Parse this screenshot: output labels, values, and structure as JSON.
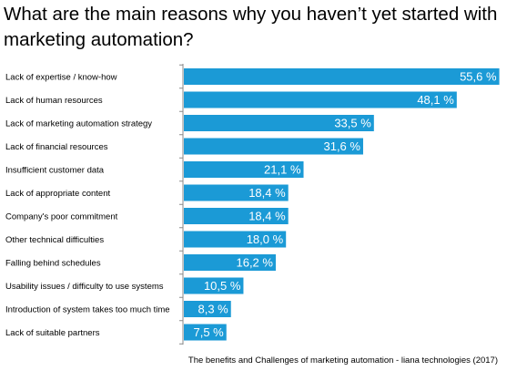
{
  "chart_data": {
    "type": "bar",
    "orientation": "horizontal",
    "title": "What are the main reasons why you haven’t yet started with marketing automation?",
    "categories": [
      "Lack of expertise / know-how",
      "Lack of human resources",
      "Lack of marketing automation strategy",
      "Lack of financial resources",
      "Insufficient customer data",
      "Lack of appropriate content",
      "Company's poor commitment",
      "Other technical difficulties",
      "Falling behind schedules",
      "Usability issues / difficulty to use systems",
      "Introduction of system takes too much time",
      "Lack of suitable partners"
    ],
    "values": [
      55.6,
      48.1,
      33.5,
      31.6,
      21.1,
      18.4,
      18.4,
      18.0,
      16.2,
      10.5,
      8.3,
      7.5
    ],
    "value_labels": [
      "55,6 %",
      "48,1 %",
      "33,5 %",
      "31,6 %",
      "21,1 %",
      "18,4 %",
      "18,4 %",
      "18,0 %",
      "16,2 %",
      "10,5 %",
      "8,3 %",
      "7,5 %"
    ],
    "unit": "%",
    "xlim": [
      0,
      60
    ],
    "grid": false,
    "legend": "none",
    "bar_color": "#1b9ad6",
    "axis_color": "#888888"
  },
  "source": "The benefits and Challenges of marketing automation - liana technologies (2017)"
}
